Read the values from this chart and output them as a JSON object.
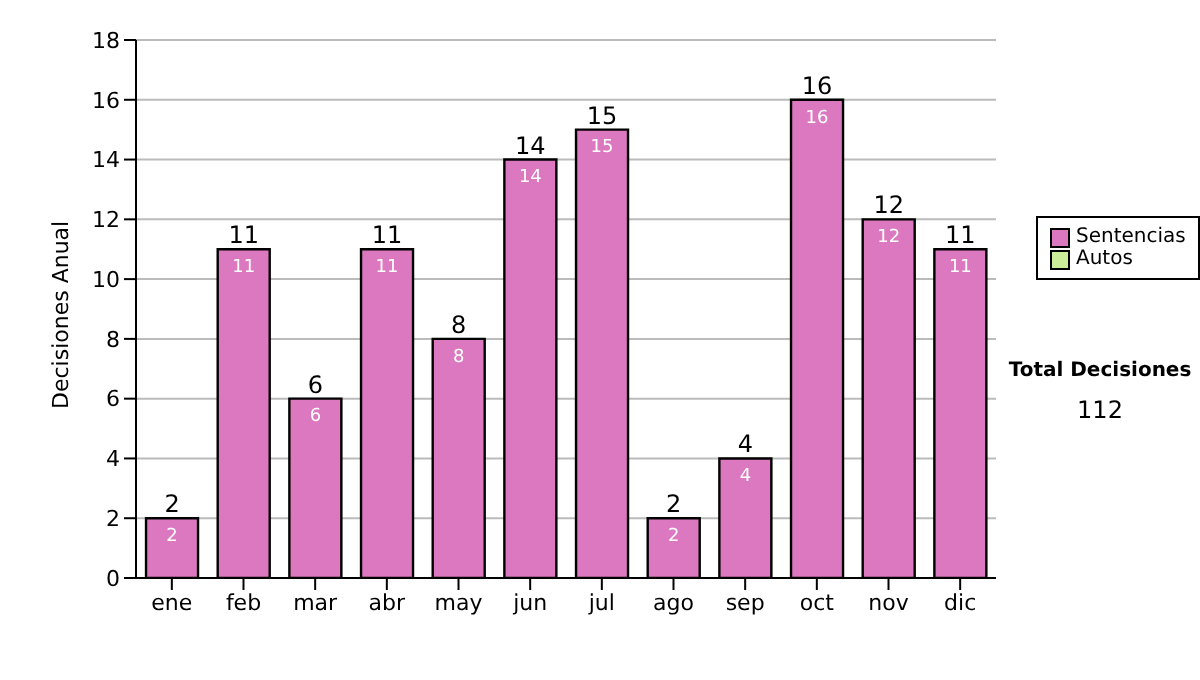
{
  "chart_data": {
    "type": "bar",
    "ylabel": "Decisiones Anual",
    "categories": [
      "ene",
      "feb",
      "mar",
      "abr",
      "may",
      "jun",
      "jul",
      "ago",
      "sep",
      "oct",
      "nov",
      "dic"
    ],
    "series": [
      {
        "name": "Sentencias",
        "color": "#dc78c0",
        "values": [
          2,
          11,
          6,
          11,
          8,
          14,
          15,
          2,
          4,
          16,
          12,
          11
        ]
      },
      {
        "name": "Autos",
        "color": "#ccee99",
        "values": [
          null,
          null,
          null,
          null,
          null,
          null,
          null,
          null,
          null,
          null,
          null,
          null
        ]
      }
    ],
    "stacked": true,
    "totals": [
      "2",
      "11",
      "6",
      "11",
      "8",
      "14",
      "15",
      "2",
      "4",
      "16",
      "12",
      "11"
    ],
    "ylim": [
      0,
      18
    ],
    "yticks": [
      0,
      2,
      4,
      6,
      8,
      10,
      12,
      14,
      16,
      18
    ],
    "grid": "y",
    "legend": "right",
    "data_labels": true,
    "annotations": [
      "Total Decisiones",
      "112"
    ]
  }
}
